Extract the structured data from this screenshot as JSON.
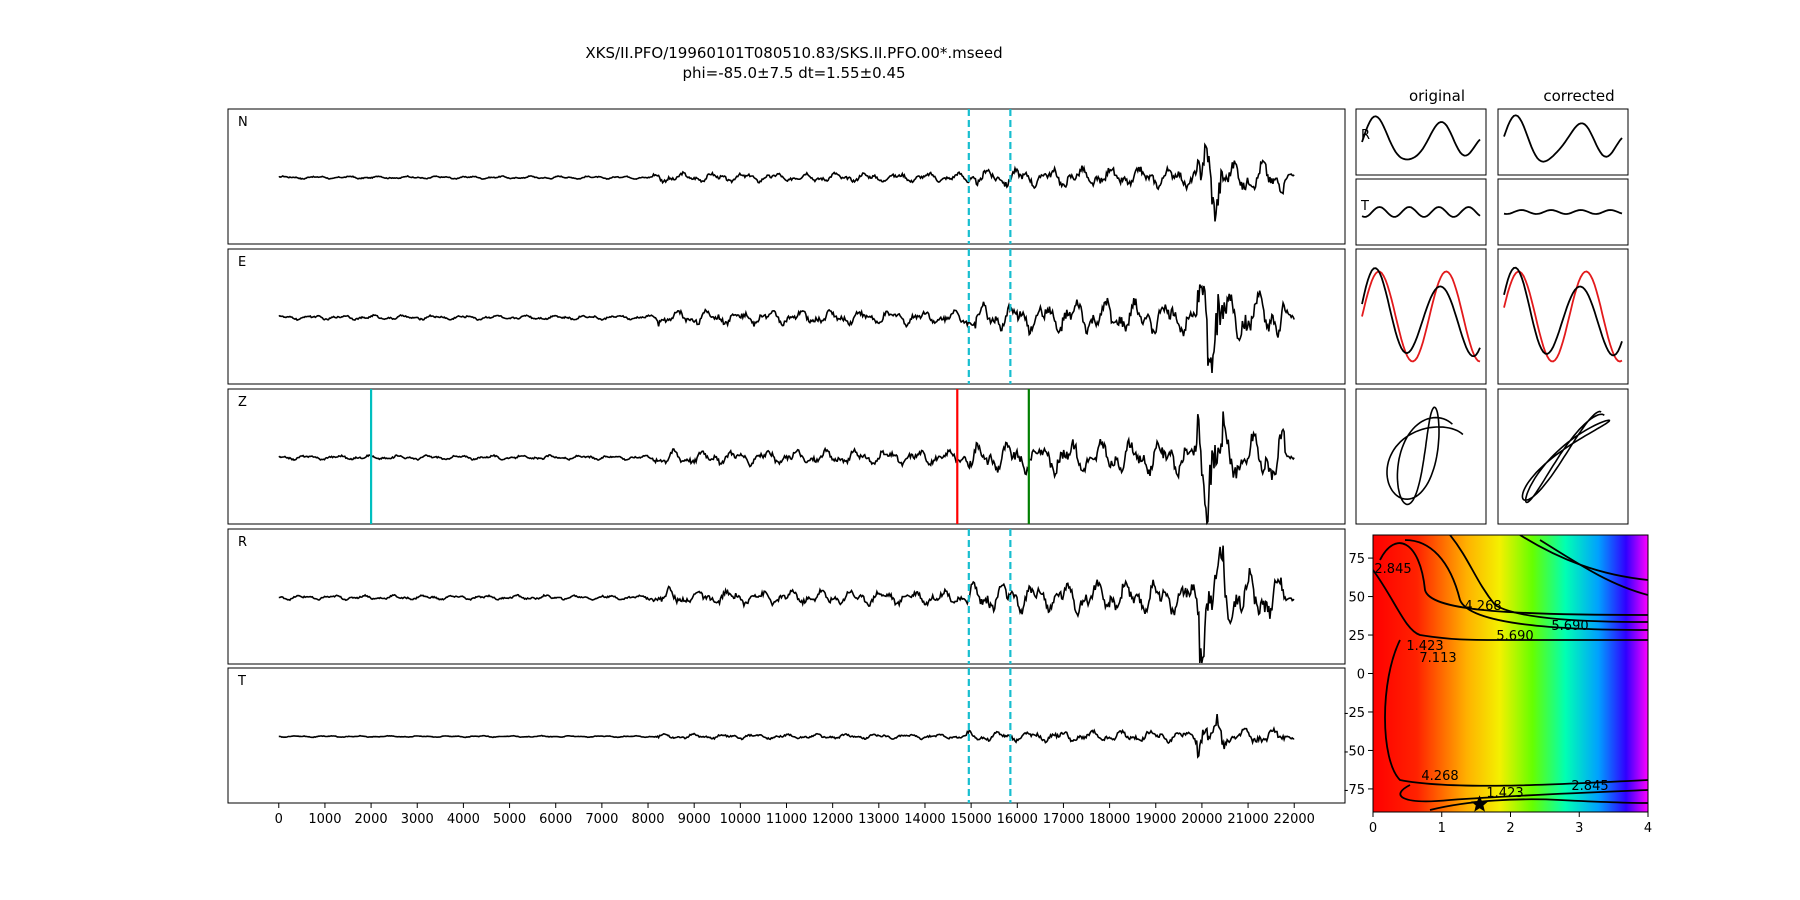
{
  "figure": {
    "title_line1": "XKS/II.PFO/19960101T080510.83/SKS.II.PFO.00*.mseed",
    "title_line2": "phi=-85.0±7.5 dt=1.55±0.45"
  },
  "colors": {
    "trace": "#000000",
    "window": "#17becf",
    "pick_cyan": "#00bfbf",
    "pick_red": "#ff0000",
    "pick_green": "#007f00",
    "predicted": "#e31a1c",
    "star": "#000000"
  },
  "chart_data": [
    {
      "type": "line",
      "name": "waveforms",
      "panels": [
        "N",
        "E",
        "Z",
        "R",
        "T"
      ],
      "x_ticks": [
        0,
        1000,
        2000,
        3000,
        4000,
        5000,
        6000,
        7000,
        8000,
        9000,
        10000,
        11000,
        12000,
        13000,
        14000,
        15000,
        16000,
        17000,
        18000,
        19000,
        20000,
        21000,
        22000
      ],
      "xlim": [
        -1100,
        23100
      ],
      "trace_x_range": [
        0,
        22000
      ],
      "window_lines": [
        14950,
        15850
      ],
      "window_panels": [
        "N",
        "E",
        "R",
        "T"
      ],
      "picks": [
        {
          "x": 2000,
          "color": "cyan"
        },
        {
          "x": 14700,
          "color": "red"
        },
        {
          "x": 16250,
          "color": "green"
        }
      ],
      "panel_amplitudes": {
        "N": 0.62,
        "E": 1.0,
        "Z": 1.0,
        "R": 1.0,
        "T": 0.34
      }
    },
    {
      "type": "line",
      "name": "particle-motion",
      "columns": [
        "original",
        "corrected"
      ],
      "row_labels": [
        "R",
        "T"
      ]
    },
    {
      "type": "heatmap",
      "name": "error-surface",
      "x_ticks": [
        0,
        1,
        2,
        3,
        4
      ],
      "y_ticks": [
        75,
        50,
        25,
        0,
        -25,
        -50,
        -75
      ],
      "xlim": [
        0,
        4
      ],
      "ylim": [
        -90,
        90
      ],
      "contour_labels": [
        "1.423",
        "2.845",
        "4.268",
        "5.690",
        "7.113"
      ],
      "minimum": {
        "x": 1.55,
        "y": -85.0
      }
    }
  ]
}
